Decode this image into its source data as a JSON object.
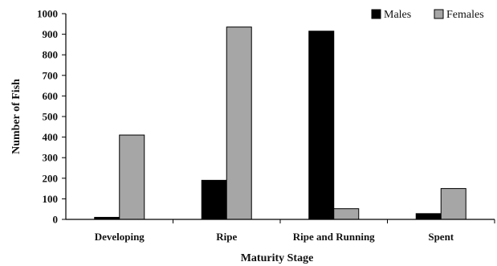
{
  "chart_data": {
    "type": "bar",
    "categories": [
      "Developing",
      "Ripe",
      "Ripe and Running",
      "Spent"
    ],
    "series": [
      {
        "name": "Males",
        "values": [
          10,
          190,
          915,
          28
        ],
        "color": "#000000"
      },
      {
        "name": "Females",
        "values": [
          410,
          935,
          52,
          150
        ],
        "color": "#a6a6a6"
      }
    ],
    "xlabel": "Maturity Stage",
    "ylabel": "Number of Fish",
    "ylim": [
      0,
      1000
    ],
    "yticks": [
      "0",
      "100",
      "200",
      "300",
      "400",
      "500",
      "600",
      "700",
      "800",
      "900",
      "1000"
    ],
    "legend": "top-right",
    "grid": false
  }
}
